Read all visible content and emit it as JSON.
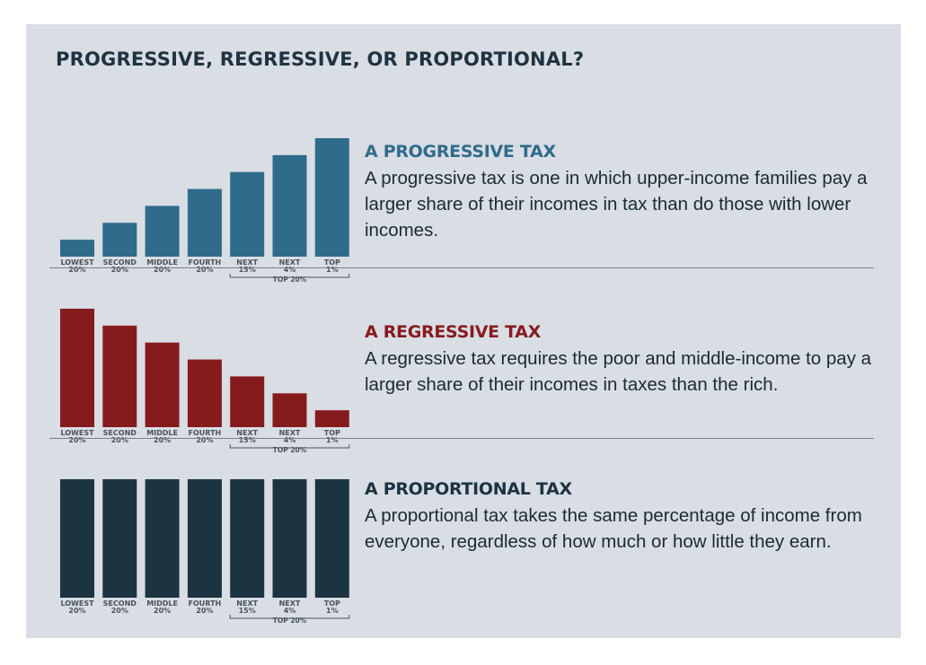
{
  "title": "PROGRESSIVE, REGRESSIVE,  OR PROPORTIONAL?",
  "colors": {
    "progressive": "#2f6b8b",
    "regressive": "#861b1e",
    "proportional": "#1c3341",
    "background": "#d9dde4",
    "title_text": "#1f3340"
  },
  "chart_data": [
    {
      "type": "bar",
      "heading": "A PROGRESSIVE TAX",
      "description": "A progressive tax is one in which upper-income families pay a larger share of their incomes in tax than do those with lower incomes.",
      "categories": [
        {
          "line1": "LOWEST",
          "line2": "20%"
        },
        {
          "line1": "SECOND",
          "line2": "20%"
        },
        {
          "line1": "MIDDLE",
          "line2": "20%"
        },
        {
          "line1": "FOURTH",
          "line2": "20%"
        },
        {
          "line1": "NEXT",
          "line2": "15%"
        },
        {
          "line1": "NEXT",
          "line2": "4%"
        },
        {
          "line1": "TOP",
          "line2": "1%"
        }
      ],
      "values": [
        1,
        2,
        3,
        4,
        5,
        6,
        7
      ],
      "ylim": [
        0,
        7
      ],
      "group_label": "TOP 20%",
      "color": "#2f6b8b"
    },
    {
      "type": "bar",
      "heading": "A REGRESSIVE TAX",
      "description": "A regressive tax requires the poor and middle-income to pay a larger share of their incomes in taxes than the rich.",
      "categories": [
        {
          "line1": "LOWEST",
          "line2": "20%"
        },
        {
          "line1": "SECOND",
          "line2": "20%"
        },
        {
          "line1": "MIDDLE",
          "line2": "20%"
        },
        {
          "line1": "FOURTH",
          "line2": "20%"
        },
        {
          "line1": "NEXT",
          "line2": "15%"
        },
        {
          "line1": "NEXT",
          "line2": "4%"
        },
        {
          "line1": "TOP",
          "line2": "1%"
        }
      ],
      "values": [
        7,
        6,
        5,
        4,
        3,
        2,
        1
      ],
      "ylim": [
        0,
        7
      ],
      "group_label": "TOP 20%",
      "color": "#861b1e"
    },
    {
      "type": "bar",
      "heading": "A PROPORTIONAL TAX",
      "description": "A proportional tax takes the same percentage of income from everyone, regardless of how much or how little they earn.",
      "categories": [
        {
          "line1": "LOWEST",
          "line2": "20%"
        },
        {
          "line1": "SECOND",
          "line2": "20%"
        },
        {
          "line1": "MIDDLE",
          "line2": "20%"
        },
        {
          "line1": "FOURTH",
          "line2": "20%"
        },
        {
          "line1": "NEXT",
          "line2": "15%"
        },
        {
          "line1": "NEXT",
          "line2": "4%"
        },
        {
          "line1": "TOP",
          "line2": "1%"
        }
      ],
      "values": [
        7,
        7,
        7,
        7,
        7,
        7,
        7
      ],
      "ylim": [
        0,
        7
      ],
      "group_label": "TOP 20%",
      "color": "#1c3341"
    }
  ]
}
